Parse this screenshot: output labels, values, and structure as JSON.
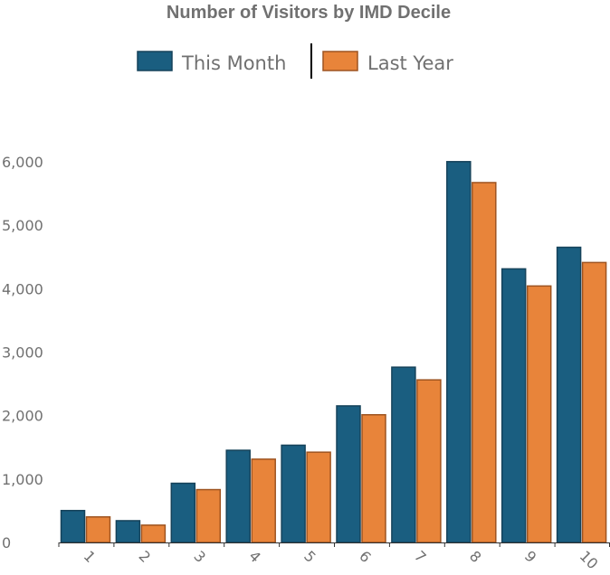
{
  "chart_data": {
    "type": "bar",
    "title": "Number of Visitors by IMD Decile",
    "xlabel": "",
    "ylabel": "",
    "categories": [
      "1",
      "2",
      "3",
      "4",
      "5",
      "6",
      "7",
      "8",
      "9",
      "10"
    ],
    "series": [
      {
        "name": "This Month",
        "color": "#1a5e80",
        "stroke": "#15425a",
        "values": [
          510,
          350,
          940,
          1460,
          1540,
          2160,
          2770,
          6010,
          4320,
          4660
        ]
      },
      {
        "name": "Last Year",
        "color": "#e8843a",
        "stroke": "#9e5421",
        "values": [
          410,
          280,
          840,
          1320,
          1430,
          2020,
          2570,
          5680,
          4050,
          4420
        ]
      }
    ],
    "ylim": [
      0,
      6000
    ],
    "yticks": [
      0,
      1000,
      2000,
      3000,
      4000,
      5000,
      6000
    ],
    "ytick_labels": [
      "0",
      "1,000",
      "2,000",
      "3,000",
      "4,000",
      "5,000",
      "6,000"
    ],
    "grid": false,
    "legend_position": "top-center"
  }
}
